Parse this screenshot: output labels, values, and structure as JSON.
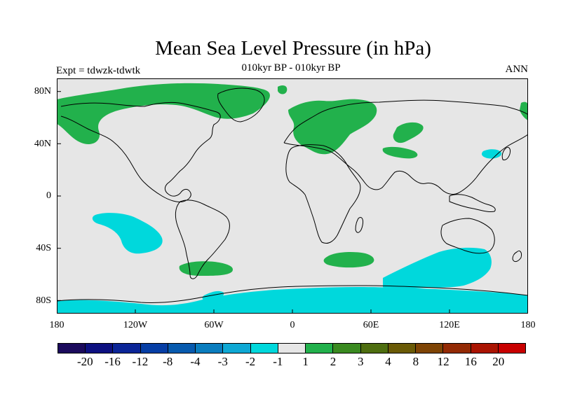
{
  "title": "Mean Sea Level Pressure (in hPa)",
  "subtitle": "010kyr BP - 010kyr BP",
  "left_label": "Expt = tdwzk-tdwtk",
  "right_label": "ANN",
  "lat_ticks": [
    "80N",
    "40N",
    "0",
    "40S",
    "80S"
  ],
  "lon_ticks": [
    "180",
    "120W",
    "60W",
    "0",
    "60E",
    "120E",
    "180"
  ],
  "colorbar": {
    "colors": [
      "#1b0a5c",
      "#0d1080",
      "#0b2597",
      "#063ea5",
      "#075aae",
      "#0a7dbe",
      "#0ea8d4",
      "#00d8dc",
      "#e6e6e6",
      "#22b14c",
      "#3a8a20",
      "#4e6e10",
      "#6a5a06",
      "#7e4404",
      "#932a04",
      "#aa1402",
      "#c80000"
    ],
    "labels": [
      "-20",
      "-16",
      "-12",
      "-8",
      "-4",
      "-3",
      "-2",
      "-1",
      "1",
      "2",
      "3",
      "4",
      "8",
      "12",
      "16",
      "20"
    ]
  },
  "map_colors": {
    "ocean": "#e6e6e6",
    "positive": "#22b14c",
    "negative": "#00d8dc",
    "coast": "#000000"
  }
}
